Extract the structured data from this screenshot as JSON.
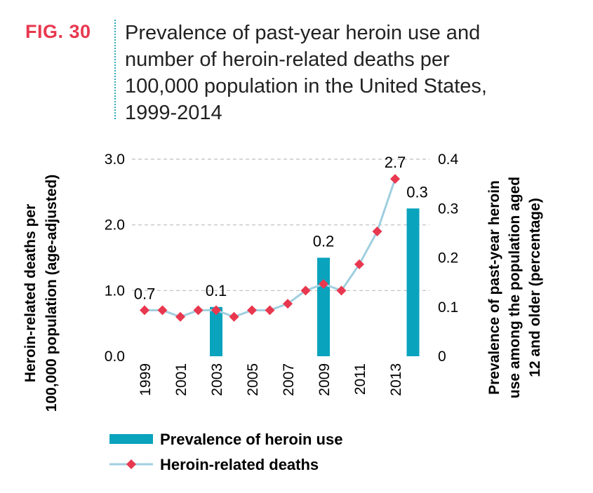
{
  "header": {
    "fig_label": "FIG. 30",
    "title": "Prevalence of past-year heroin use and\nnumber of heroin-related deaths per\n100,000 population in the United States,\n1999-2014"
  },
  "colors": {
    "fig_label": "#e8384f",
    "bar": "#0aa3bd",
    "line": "#9fcfe0",
    "marker": "#e8384f",
    "grid": "#bdbdbd"
  },
  "chart_data": {
    "type": "bar",
    "x": [
      "1999",
      "2000",
      "2001",
      "2002",
      "2003",
      "2004",
      "2005",
      "2006",
      "2007",
      "2008",
      "2009",
      "2010",
      "2011",
      "2012",
      "2013",
      "2014"
    ],
    "x_tick_labels": [
      "1999",
      "2001",
      "2003",
      "2005",
      "2007",
      "2009",
      "2011",
      "2013"
    ],
    "left_axis": {
      "label_lines": [
        "Heroin-related deaths per",
        "100,000 population (age-adjusted)"
      ],
      "ticks": [
        "0.0",
        "1.0",
        "2.0",
        "3.0"
      ],
      "ylim": [
        0,
        3
      ]
    },
    "right_axis": {
      "label_lines": [
        "Prevalence of past-year heroin",
        "use among the population aged",
        "12 and older (percentage)"
      ],
      "ticks": [
        "0",
        "0.1",
        "0.2",
        "0.3",
        "0.4"
      ],
      "ylim": [
        0,
        0.4
      ]
    },
    "grid": true,
    "legend_position": "bottom",
    "series": [
      {
        "name": "Prevalence of heroin use",
        "type": "bar",
        "axis": "right",
        "values": [
          null,
          null,
          null,
          null,
          0.1,
          null,
          null,
          null,
          null,
          null,
          0.2,
          null,
          null,
          null,
          null,
          0.3
        ]
      },
      {
        "name": "Heroin-related deaths",
        "type": "line",
        "axis": "left",
        "values": [
          0.7,
          0.7,
          0.6,
          0.7,
          0.7,
          0.6,
          0.7,
          0.7,
          0.8,
          1.0,
          1.1,
          1.0,
          1.4,
          1.9,
          2.7,
          null
        ]
      }
    ],
    "data_labels": [
      {
        "series": "Heroin-related deaths",
        "x": "1999",
        "text": "0.7"
      },
      {
        "series": "Prevalence of heroin use",
        "x": "2003",
        "text": "0.1"
      },
      {
        "series": "Prevalence of heroin use",
        "x": "2009",
        "text": "0.2"
      },
      {
        "series": "Heroin-related deaths",
        "x": "2013",
        "text": "2.7"
      },
      {
        "series": "Prevalence of heroin use",
        "x": "2014",
        "text": "0.3"
      }
    ]
  }
}
